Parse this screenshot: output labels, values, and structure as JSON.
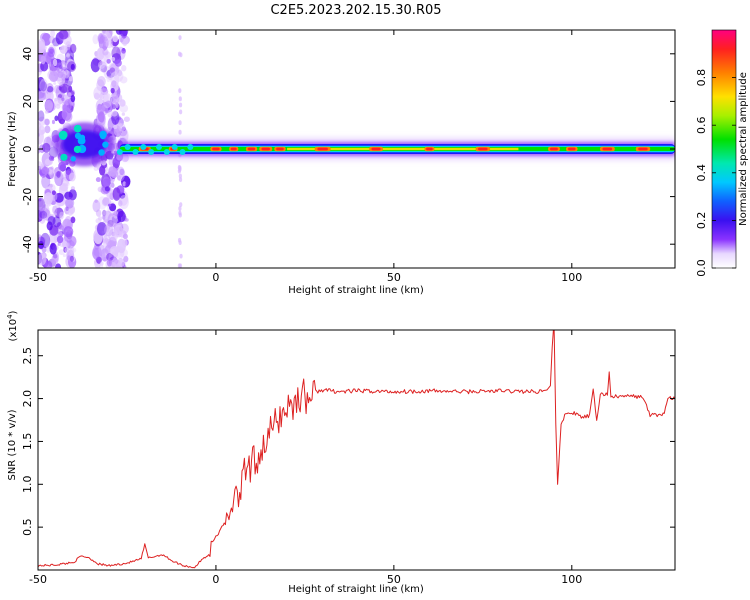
{
  "title": "C2E5.2023.202.15.30.R05",
  "colors": {
    "snr_line": "#dd2222",
    "axis": "#000000",
    "spectro_ramp": [
      "#ffffff",
      "#d9b8ff",
      "#a04cff",
      "#5a0cf0",
      "#1a1aff",
      "#00b0ff",
      "#00e0c0",
      "#00e000",
      "#b0f000",
      "#ffe000",
      "#ff8000",
      "#ff2020",
      "#ff0080"
    ]
  },
  "chart_data": [
    {
      "type": "heatmap",
      "xlabel": "Height of straight line (km)",
      "ylabel": "Frequency (Hz)",
      "xlim": [
        -50,
        129
      ],
      "ylim": [
        -50,
        50
      ],
      "x_ticks": [
        -50,
        0,
        50,
        100
      ],
      "x_tick_labels": [
        "-50",
        "0",
        "50",
        "100"
      ],
      "y_ticks": [
        -40,
        -20,
        0,
        20,
        40
      ],
      "y_tick_labels": [
        "-40",
        "-20",
        "0",
        "20",
        "40"
      ],
      "colorbar": {
        "label": "Normalized spectral amplitude",
        "range": [
          0,
          1
        ],
        "ticks": [
          0.0,
          0.2,
          0.4,
          0.6,
          0.8
        ],
        "tick_labels": [
          "0.0",
          "0.2",
          "0.4",
          "0.6",
          "0.8"
        ]
      },
      "features": {
        "noise_band_1_x": [
          -50,
          -40
        ],
        "noise_band_2_x": [
          -34,
          -25
        ],
        "sparse_column_x": -10,
        "blob_center": [
          -37,
          2
        ],
        "ridge_start_x": -27,
        "ridge_end_x": 129,
        "ridge_frequency": 0,
        "ridge_peaks_x": [
          -20,
          -12,
          0,
          5,
          10,
          14,
          18,
          30,
          45,
          60,
          75,
          95,
          100,
          110,
          120
        ]
      },
      "grid": false
    },
    {
      "type": "line",
      "xlabel": "Height of straight line (km)",
      "ylabel": "SNR (10 * v/v)",
      "y_exponent_label": "(x10",
      "y_exponent_power": "4",
      "y_exponent_close": ")",
      "xlim": [
        -50,
        129
      ],
      "ylim": [
        0,
        28000
      ],
      "x_ticks": [
        -50,
        0,
        50,
        100
      ],
      "x_tick_labels": [
        "-50",
        "0",
        "50",
        "100"
      ],
      "y_ticks": [
        5000,
        10000,
        15000,
        20000,
        25000
      ],
      "y_tick_labels": [
        "0.5",
        "1.0",
        "1.5",
        "2.0",
        "2.5"
      ],
      "series": [
        {
          "x": [
            -50,
            -45,
            -40,
            -38,
            -36,
            -33,
            -30,
            -25,
            -21,
            -20,
            -19,
            -17,
            -15,
            -12,
            -9,
            -6,
            -4,
            -2,
            0,
            2,
            4,
            6,
            8,
            10,
            12,
            14,
            16,
            18,
            20,
            22,
            24,
            26,
            28,
            30,
            35,
            40,
            50,
            60,
            70,
            80,
            90,
            93,
            94,
            94.5,
            95,
            95.5,
            96,
            97,
            98,
            100,
            103,
            105,
            106,
            107,
            108,
            110,
            110.5,
            111,
            113,
            115,
            120,
            122,
            123,
            125,
            126,
            127,
            129
          ],
          "y": [
            500,
            600,
            900,
            1600,
            1500,
            700,
            500,
            800,
            1300,
            3000,
            1400,
            1600,
            1800,
            1000,
            500,
            300,
            1200,
            1800,
            4000,
            5500,
            7000,
            8000,
            11000,
            12000,
            13500,
            15000,
            16500,
            18000,
            19000,
            19500,
            20500,
            20000,
            20800,
            21000,
            20800,
            20900,
            20800,
            20900,
            20800,
            20900,
            20800,
            21000,
            21500,
            26000,
            29000,
            17000,
            10000,
            17000,
            18000,
            18400,
            17800,
            18000,
            21000,
            17500,
            20500,
            20500,
            23000,
            20300,
            20200,
            20300,
            20200,
            18000,
            18200,
            18000,
            18400,
            20000,
            20100
          ]
        }
      ],
      "grid": false
    }
  ]
}
